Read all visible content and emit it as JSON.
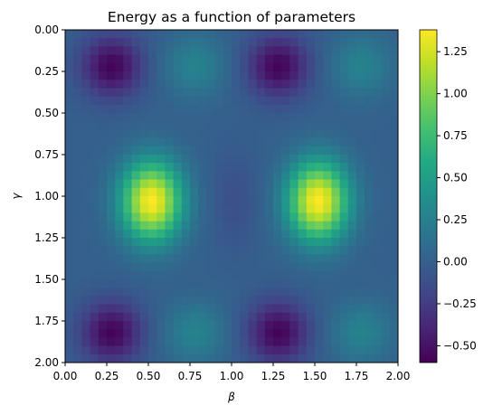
{
  "chart_data": {
    "type": "heatmap",
    "title": "Energy as a function of parameters",
    "xlabel": "β",
    "ylabel": "γ",
    "xlim": [
      0.0,
      2.0
    ],
    "ylim": [
      2.0,
      0.0
    ],
    "y_inverted": true,
    "x_ticks": [
      "0.00",
      "0.25",
      "0.50",
      "0.75",
      "1.00",
      "1.25",
      "1.50",
      "1.75",
      "2.00"
    ],
    "y_ticks": [
      "0.00",
      "0.25",
      "0.50",
      "0.75",
      "1.00",
      "1.25",
      "1.50",
      "1.75",
      "2.00"
    ],
    "grid_cells": [
      40,
      40
    ],
    "colormap": "viridis",
    "colorbar": {
      "range": [
        -0.6,
        1.38
      ],
      "ticks": [
        "-0.50",
        "-0.25",
        "0.00",
        "0.25",
        "0.50",
        "0.75",
        "1.00",
        "1.25"
      ]
    },
    "features": [
      {
        "beta": 0.28,
        "gamma": 0.22,
        "value": -0.58
      },
      {
        "beta": 1.28,
        "gamma": 0.22,
        "value": -0.58
      },
      {
        "beta": 0.28,
        "gamma": 1.82,
        "value": -0.58
      },
      {
        "beta": 1.28,
        "gamma": 1.82,
        "value": -0.58
      },
      {
        "beta": 0.78,
        "gamma": 0.22,
        "value": 0.28
      },
      {
        "beta": 1.78,
        "gamma": 0.22,
        "value": 0.28
      },
      {
        "beta": 0.78,
        "gamma": 1.82,
        "value": 0.28
      },
      {
        "beta": 1.78,
        "gamma": 1.82,
        "value": 0.28
      },
      {
        "beta": 0.52,
        "gamma": 1.03,
        "value": 1.38
      },
      {
        "beta": 1.52,
        "gamma": 1.03,
        "value": 1.38
      }
    ]
  }
}
